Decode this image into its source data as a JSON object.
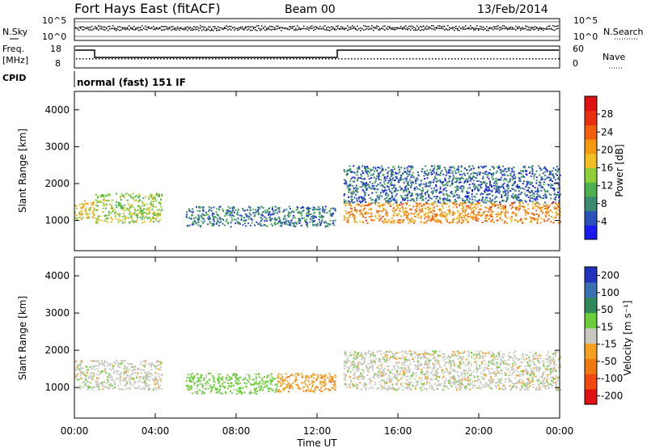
{
  "header": {
    "title": "Fort Hays East (fitACF)",
    "beam": "Beam 00",
    "date": "13/Feb/2014"
  },
  "strips": {
    "nsky_label": "N.Sky",
    "nsky_tick_top": "10^5",
    "nsky_tick_bottom": "10^0",
    "nsearch_label": "N.Search",
    "nsearch_tick_top": "10^5",
    "nsearch_tick_bottom": "10^0",
    "freq_label": "Freq.",
    "freq_unit": "[MHz]",
    "freq_tick_top": "18",
    "freq_tick_bottom": "8",
    "nave_label": "Nave",
    "nave_tick_top": "60",
    "nave_tick_bottom": "0",
    "cpid_label": "CPID",
    "cpid_value": "normal (fast) 151 IF"
  },
  "axes": {
    "ylabel": "Slant Range [km]",
    "xlabel": "Time UT",
    "x_ticks": [
      "00:00",
      "04:00",
      "08:00",
      "12:00",
      "16:00",
      "20:00",
      "00:00"
    ],
    "y_ticks": [
      "1000",
      "2000",
      "3000",
      "4000"
    ]
  },
  "power_scale": {
    "label": "Power [dB]",
    "ticks": [
      "4",
      "8",
      "12",
      "16",
      "20",
      "24",
      "28"
    ],
    "colors": [
      "#1a1aee",
      "#2a52b8",
      "#3b8a70",
      "#4cb050",
      "#8fcf3a",
      "#f0c020",
      "#f59a10",
      "#f06010",
      "#e83010",
      "#e01010"
    ]
  },
  "velocity_scale": {
    "label": "Velocity [m s⁻¹]",
    "ticks": [
      "200",
      "100",
      "50",
      "15",
      "-15",
      "-50",
      "-100",
      "-200"
    ],
    "colors": [
      "#2233bb",
      "#3a6fb0",
      "#2e8a5a",
      "#6ccc3a",
      "#c8c8c0",
      "#f5a020",
      "#f07810",
      "#f04a10",
      "#e01010"
    ]
  },
  "chart_data": [
    {
      "type": "heatmap",
      "panel": "power",
      "xlabel": "Time UT",
      "ylabel": "Slant Range [km]",
      "xlim": [
        0,
        24
      ],
      "ylim": [
        180,
        4500
      ],
      "colorbar": {
        "label": "Power [dB]",
        "range": [
          0,
          32
        ]
      },
      "regions": [
        {
          "t": [
            0.0,
            1.0
          ],
          "range": [
            1050,
            1550
          ],
          "power_db": 18
        },
        {
          "t": [
            1.0,
            4.3
          ],
          "range": [
            950,
            1750
          ],
          "power_db": 14
        },
        {
          "t": [
            5.5,
            12.9
          ],
          "range": [
            850,
            1400
          ],
          "power_db": 6
        },
        {
          "t": [
            13.3,
            24.0
          ],
          "range": [
            950,
            1500
          ],
          "power_db": 22
        },
        {
          "t": [
            13.3,
            24.0
          ],
          "range": [
            1500,
            2500
          ],
          "power_db": 5
        }
      ]
    },
    {
      "type": "heatmap",
      "panel": "velocity",
      "xlabel": "Time UT",
      "ylabel": "Slant Range [km]",
      "xlim": [
        0,
        24
      ],
      "ylim": [
        180,
        4500
      ],
      "colorbar": {
        "label": "Velocity [m s⁻¹]",
        "range": [
          -200,
          200
        ]
      },
      "regions": [
        {
          "t": [
            0.0,
            4.3
          ],
          "range": [
            950,
            1750
          ],
          "velocity": 0
        },
        {
          "t": [
            5.5,
            10.0
          ],
          "range": [
            850,
            1400
          ],
          "velocity": 30
        },
        {
          "t": [
            10.0,
            12.9
          ],
          "range": [
            900,
            1400
          ],
          "velocity": -40
        },
        {
          "t": [
            13.3,
            24.0
          ],
          "range": [
            950,
            2000
          ],
          "velocity": 0
        }
      ]
    }
  ]
}
